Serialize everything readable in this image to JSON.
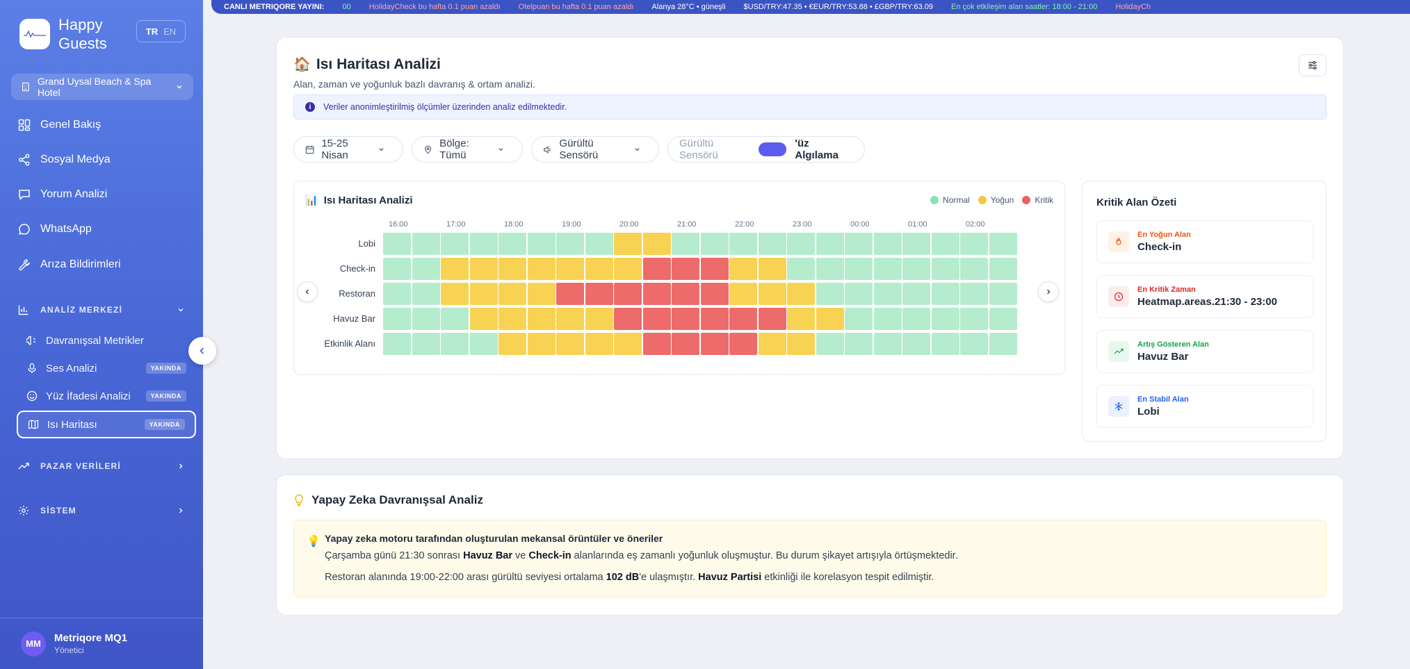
{
  "brand": {
    "name": "Happy Guests",
    "logo_text": "MetriQore"
  },
  "lang": {
    "active": "TR",
    "other": "EN"
  },
  "hotel": {
    "name": "Grand Uysal Beach & Spa Hotel"
  },
  "nav": [
    {
      "label": "Genel Bakış",
      "icon": "grid-icon"
    },
    {
      "label": "Sosyal Medya",
      "icon": "share-icon"
    },
    {
      "label": "Yorum Analizi",
      "icon": "comment-icon"
    },
    {
      "label": "WhatsApp",
      "icon": "whatsapp-icon"
    },
    {
      "label": "Arıza Bildirimleri",
      "icon": "wrench-icon"
    }
  ],
  "sections": {
    "analiz": "ANALİZ MERKEZİ",
    "pazar": "PAZAR VERİLERİ",
    "sistem": "SİSTEM"
  },
  "sub_nav": [
    {
      "label": "Davranışsal Metrikler",
      "badge": ""
    },
    {
      "label": "Ses Analizi",
      "badge": "YAKINDA"
    },
    {
      "label": "Yüz İfadesi Analizi",
      "badge": "YAKINDA"
    },
    {
      "label": "Isı Haritası",
      "badge": "YAKINDA",
      "active": true
    }
  ],
  "user": {
    "initials": "MM",
    "name": "Metriqore MQ1",
    "role": "Yönetici"
  },
  "ticker": [
    "CANLI METRIQORE YAYINI:",
    "00",
    "HolidayCheck bu hafta 0.1 puan azaldı",
    "Otelpuan bu hafta 0.1 puan azaldı",
    "Alanya 28°C • güneşli",
    "$USD/TRY:47.35 • €EUR/TRY:53.88 • £GBP/TRY:63.09",
    "En çok etkileşim alan saatler: 18:00 - 21:00",
    "HolidayCh"
  ],
  "page": {
    "title": "Isı Haritası Analizi",
    "subtitle": "Alan, zaman ve yoğunluk bazlı davranış & ortam analizi.",
    "info": "Veriler anonimleştirilmiş ölçümler üzerinden analiz edilmektedir."
  },
  "filters": {
    "date": "15-25 Nisan",
    "region": "Bölge: Tümü",
    "sensor": "Gürültü Sensörü",
    "toggle_label": "Gürültü Sensörü",
    "toggle_suffix": "'üz Algılama"
  },
  "heatmap": {
    "title": "Isı Haritası Analizi",
    "legend": [
      {
        "label": "Normal",
        "color": "#86e3b4"
      },
      {
        "label": "Yoğun",
        "color": "#f5c842"
      },
      {
        "label": "Kritik",
        "color": "#ec6161"
      }
    ],
    "hours": [
      "16:00",
      "17:00",
      "18:00",
      "19:00",
      "20:00",
      "21:00",
      "22:00",
      "23:00",
      "00:00",
      "01:00",
      "02:00"
    ],
    "areas": [
      "Lobi",
      "Check-in",
      "Restoran",
      "Havuz Bar",
      "Etkinlik Alanı"
    ],
    "levels": [
      "NNNNNNNNYYNNNNNNNNNNNN",
      "NNYYYYYYYKKKYYNNNNNNNN",
      "NNYYYYKKKKKKYYYNNNNNNN",
      "NNNYYYYYKKKKKKYYNNNNNN",
      "NNNNYYYYYKKKKYYNNNNNNN"
    ]
  },
  "critical": {
    "title": "Kritik Alan Özeti",
    "items": [
      {
        "label": "En Yoğun Alan",
        "value": "Check-in",
        "color": "#ea580c",
        "icon": "fire-icon"
      },
      {
        "label": "En Kritik Zaman",
        "value": "Heatmap.areas.21:30 - 23:00",
        "color": "#dc2626",
        "icon": "clock-icon"
      },
      {
        "label": "Artış Gösteren Alan",
        "value": "Havuz Bar",
        "color": "#16a34a",
        "icon": "trending-up-icon"
      },
      {
        "label": "En Stabil Alan",
        "value": "Lobi",
        "color": "#2563eb",
        "icon": "snowflake-icon"
      }
    ]
  },
  "ai": {
    "title": "Yapay Zeka Davranışsal Analiz",
    "heading": "Yapay zeka motoru tarafından oluşturulan mekansal örüntüler ve öneriler",
    "l1_a": "Çarşamba günü 21:30 sonrası ",
    "l1_b": "Havuz Bar",
    "l1_c": " ve ",
    "l1_d": "Check-in",
    "l1_e": " alanlarında eş zamanlı yoğunluk oluşmuştur. Bu durum şikayet artışıyla örtüşmektedir.",
    "l2_a": "Restoran alanında 19:00-22:00 arası gürültü seviyesi ortalama ",
    "l2_b": "102 dB",
    "l2_c": "'e ulaşmıştır. ",
    "l2_d": "Havuz Partisi",
    "l2_e": " etkinliği ile korelasyon tespit edilmiştir."
  }
}
